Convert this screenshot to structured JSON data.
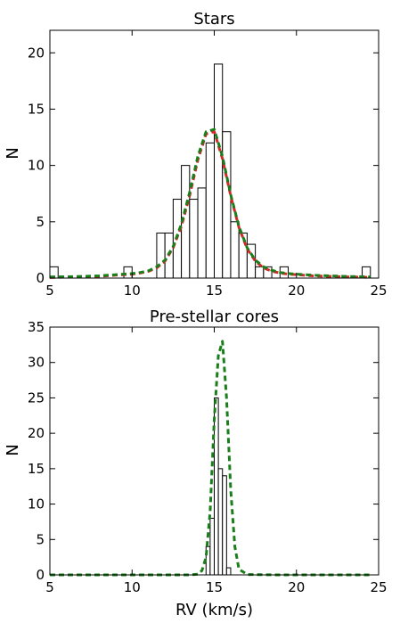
{
  "colors": {
    "bar_edge": "#000000",
    "bar_fill": "#ffffff",
    "fit_red": "#d62728",
    "fit_green": "#1a7f1a"
  },
  "chart_data": [
    {
      "type": "bar",
      "title": "Stars",
      "xlabel": "",
      "ylabel": "N",
      "xlim": [
        5,
        25
      ],
      "ylim": [
        0,
        22
      ],
      "xticks": [
        "5",
        "10",
        "15",
        "20",
        "25"
      ],
      "yticks": [
        "0",
        "5",
        "10",
        "15",
        "20"
      ],
      "xtick_values": [
        5,
        10,
        15,
        20,
        25
      ],
      "ytick_values": [
        0,
        5,
        10,
        15,
        20
      ],
      "bin_width": 0.5,
      "bin_starts": [
        5.0,
        9.5,
        11.5,
        12.0,
        12.5,
        13.0,
        13.5,
        14.0,
        14.5,
        15.0,
        15.5,
        16.0,
        16.5,
        17.0,
        17.5,
        18.0,
        19.0,
        24.0
      ],
      "values": [
        1,
        1,
        4,
        4,
        7,
        10,
        7,
        8,
        12,
        19,
        13,
        5,
        4,
        3,
        1,
        1,
        1,
        1
      ],
      "series": [
        {
          "style": "dashed-red",
          "x": [
            5.0,
            6.0,
            7.0,
            8.0,
            9.0,
            10.0,
            10.5,
            11.0,
            11.5,
            12.0,
            12.5,
            13.0,
            13.5,
            14.0,
            14.5,
            15.0,
            15.5,
            16.0,
            16.5,
            17.0,
            17.5,
            18.0,
            18.5,
            19.0,
            19.5,
            20.0,
            21.0,
            22.0,
            23.0,
            24.0,
            24.5
          ],
          "y": [
            0.05,
            0.08,
            0.1,
            0.15,
            0.25,
            0.35,
            0.45,
            0.6,
            0.9,
            1.5,
            2.7,
            4.6,
            7.3,
            10.5,
            12.8,
            13.0,
            10.6,
            7.3,
            4.5,
            2.6,
            1.5,
            0.9,
            0.6,
            0.45,
            0.35,
            0.3,
            0.2,
            0.15,
            0.1,
            0.08,
            0.06
          ]
        },
        {
          "style": "dashed-green",
          "x": [
            5.0,
            6.0,
            7.0,
            8.0,
            9.0,
            10.0,
            10.5,
            11.0,
            11.5,
            12.0,
            12.5,
            13.0,
            13.5,
            14.0,
            14.5,
            15.0,
            15.5,
            16.0,
            16.5,
            17.0,
            17.5,
            18.0,
            18.5,
            19.0,
            19.5,
            20.0,
            21.0,
            22.0,
            23.0,
            24.0,
            24.5
          ],
          "y": [
            0.1,
            0.12,
            0.15,
            0.2,
            0.3,
            0.4,
            0.5,
            0.65,
            1.0,
            1.6,
            2.8,
            4.8,
            7.6,
            10.8,
            13.0,
            13.2,
            10.8,
            7.4,
            4.6,
            2.7,
            1.6,
            1.0,
            0.7,
            0.5,
            0.4,
            0.35,
            0.25,
            0.2,
            0.15,
            0.12,
            0.1
          ]
        }
      ]
    },
    {
      "type": "bar",
      "title": "Pre-stellar cores",
      "xlabel": "RV (km/s)",
      "ylabel": "N",
      "xlim": [
        5,
        25
      ],
      "ylim": [
        0,
        35
      ],
      "xticks": [
        "5",
        "10",
        "15",
        "20",
        "25"
      ],
      "yticks": [
        "0",
        "5",
        "10",
        "15",
        "20",
        "25",
        "30",
        "35"
      ],
      "xtick_values": [
        5,
        10,
        15,
        20,
        25
      ],
      "ytick_values": [
        0,
        5,
        10,
        15,
        20,
        25,
        30,
        35
      ],
      "bin_width": 0.25,
      "bin_starts": [
        14.5,
        14.75,
        15.0,
        15.25,
        15.5,
        15.75
      ],
      "values": [
        4,
        8,
        25,
        15,
        14,
        1
      ],
      "series": [
        {
          "style": "dashed-green",
          "x": [
            5.0,
            8.0,
            10.0,
            12.0,
            13.5,
            14.0,
            14.25,
            14.5,
            14.75,
            15.0,
            15.25,
            15.5,
            15.75,
            16.0,
            16.25,
            16.5,
            17.0,
            19.0,
            22.0,
            24.5
          ],
          "y": [
            0,
            0,
            0,
            0,
            0,
            0.1,
            0.6,
            2.5,
            9.0,
            22.0,
            31.0,
            33.0,
            25.0,
            12.0,
            4.0,
            0.8,
            0.05,
            0,
            0,
            0
          ]
        }
      ]
    }
  ]
}
